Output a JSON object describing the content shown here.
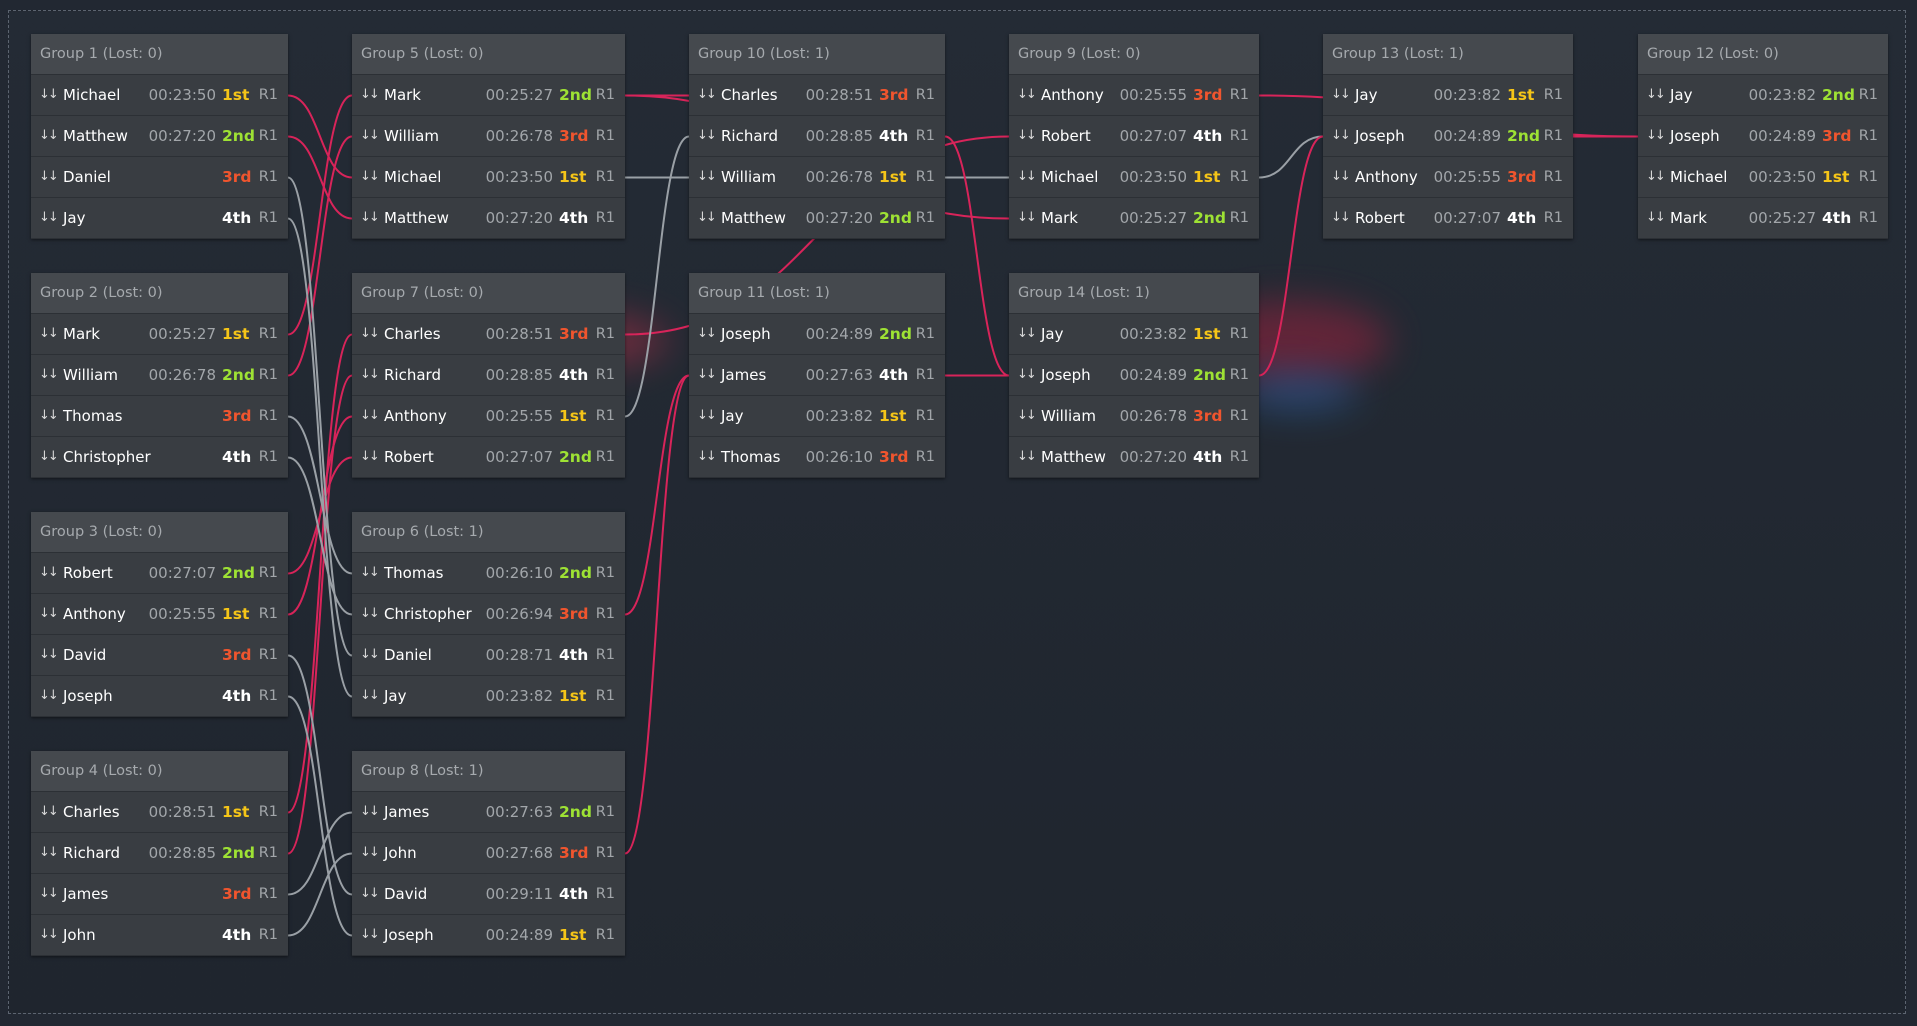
{
  "colors": {
    "place_1st": "#f5c518",
    "place_2nd": "#9ee234",
    "place_3rd": "#f0552e",
    "place_4th": "#ffffff",
    "connector_advance": "#d8245a",
    "connector_lose": "#9aa0a6"
  },
  "icons": {
    "sort": "swap-vertical-arrows-icon"
  },
  "groups": [
    {
      "id": "g1",
      "title": "Group 1 (Lost: 0)",
      "rows": [
        {
          "sort": "↓↓",
          "name": "Michael",
          "time": "00:23:50",
          "place": "1st",
          "round": "R1"
        },
        {
          "sort": "↓↓",
          "name": "Matthew",
          "time": "00:27:20",
          "place": "2nd",
          "round": "R1"
        },
        {
          "sort": "↓↓",
          "name": "Daniel",
          "time": "",
          "place": "3rd",
          "round": "R1"
        },
        {
          "sort": "↓↓",
          "name": "Jay",
          "time": "",
          "place": "4th",
          "round": "R1"
        }
      ]
    },
    {
      "id": "g2",
      "title": "Group 2 (Lost: 0)",
      "rows": [
        {
          "sort": "↓↓",
          "name": "Mark",
          "time": "00:25:27",
          "place": "1st",
          "round": "R1"
        },
        {
          "sort": "↓↓",
          "name": "William",
          "time": "00:26:78",
          "place": "2nd",
          "round": "R1"
        },
        {
          "sort": "↓↓",
          "name": "Thomas",
          "time": "",
          "place": "3rd",
          "round": "R1"
        },
        {
          "sort": "↓↓",
          "name": "Christopher",
          "time": "",
          "place": "4th",
          "round": "R1"
        }
      ]
    },
    {
      "id": "g3",
      "title": "Group 3 (Lost: 0)",
      "rows": [
        {
          "sort": "↓↓",
          "name": "Robert",
          "time": "00:27:07",
          "place": "2nd",
          "round": "R1"
        },
        {
          "sort": "↓↓",
          "name": "Anthony",
          "time": "00:25:55",
          "place": "1st",
          "round": "R1"
        },
        {
          "sort": "↓↓",
          "name": "David",
          "time": "",
          "place": "3rd",
          "round": "R1"
        },
        {
          "sort": "↓↓",
          "name": "Joseph",
          "time": "",
          "place": "4th",
          "round": "R1"
        }
      ]
    },
    {
      "id": "g4",
      "title": "Group 4 (Lost: 0)",
      "rows": [
        {
          "sort": "↓↓",
          "name": "Charles",
          "time": "00:28:51",
          "place": "1st",
          "round": "R1"
        },
        {
          "sort": "↓↓",
          "name": "Richard",
          "time": "00:28:85",
          "place": "2nd",
          "round": "R1"
        },
        {
          "sort": "↓↓",
          "name": "James",
          "time": "",
          "place": "3rd",
          "round": "R1"
        },
        {
          "sort": "↓↓",
          "name": "John",
          "time": "",
          "place": "4th",
          "round": "R1"
        }
      ]
    },
    {
      "id": "g5",
      "title": "Group 5 (Lost: 0)",
      "rows": [
        {
          "sort": "↓↓",
          "name": "Mark",
          "time": "00:25:27",
          "place": "2nd",
          "round": "R1"
        },
        {
          "sort": "↓↓",
          "name": "William",
          "time": "00:26:78",
          "place": "3rd",
          "round": "R1"
        },
        {
          "sort": "↓↓",
          "name": "Michael",
          "time": "00:23:50",
          "place": "1st",
          "round": "R1"
        },
        {
          "sort": "↓↓",
          "name": "Matthew",
          "time": "00:27:20",
          "place": "4th",
          "round": "R1"
        }
      ]
    },
    {
      "id": "g7",
      "title": "Group 7 (Lost: 0)",
      "rows": [
        {
          "sort": "↓↓",
          "name": "Charles",
          "time": "00:28:51",
          "place": "3rd",
          "round": "R1"
        },
        {
          "sort": "↓↓",
          "name": "Richard",
          "time": "00:28:85",
          "place": "4th",
          "round": "R1"
        },
        {
          "sort": "↓↓",
          "name": "Anthony",
          "time": "00:25:55",
          "place": "1st",
          "round": "R1"
        },
        {
          "sort": "↓↓",
          "name": "Robert",
          "time": "00:27:07",
          "place": "2nd",
          "round": "R1"
        }
      ]
    },
    {
      "id": "g6",
      "title": "Group 6 (Lost: 1)",
      "rows": [
        {
          "sort": "↓↓",
          "name": "Thomas",
          "time": "00:26:10",
          "place": "2nd",
          "round": "R1"
        },
        {
          "sort": "↓↓",
          "name": "Christopher",
          "time": "00:26:94",
          "place": "3rd",
          "round": "R1"
        },
        {
          "sort": "↓↓",
          "name": "Daniel",
          "time": "00:28:71",
          "place": "4th",
          "round": "R1"
        },
        {
          "sort": "↓↓",
          "name": "Jay",
          "time": "00:23:82",
          "place": "1st",
          "round": "R1"
        }
      ]
    },
    {
      "id": "g8",
      "title": "Group 8 (Lost: 1)",
      "rows": [
        {
          "sort": "↓↓",
          "name": "James",
          "time": "00:27:63",
          "place": "2nd",
          "round": "R1"
        },
        {
          "sort": "↓↓",
          "name": "John",
          "time": "00:27:68",
          "place": "3rd",
          "round": "R1"
        },
        {
          "sort": "↓↓",
          "name": "David",
          "time": "00:29:11",
          "place": "4th",
          "round": "R1"
        },
        {
          "sort": "↓↓",
          "name": "Joseph",
          "time": "00:24:89",
          "place": "1st",
          "round": "R1"
        }
      ]
    },
    {
      "id": "g10",
      "title": "Group 10 (Lost: 1)",
      "rows": [
        {
          "sort": "↓↓",
          "name": "Charles",
          "time": "00:28:51",
          "place": "3rd",
          "round": "R1"
        },
        {
          "sort": "↓↓",
          "name": "Richard",
          "time": "00:28:85",
          "place": "4th",
          "round": "R1"
        },
        {
          "sort": "↓↓",
          "name": "William",
          "time": "00:26:78",
          "place": "1st",
          "round": "R1"
        },
        {
          "sort": "↓↓",
          "name": "Matthew",
          "time": "00:27:20",
          "place": "2nd",
          "round": "R1"
        }
      ]
    },
    {
      "id": "g11",
      "title": "Group 11 (Lost: 1)",
      "rows": [
        {
          "sort": "↓↓",
          "name": "Joseph",
          "time": "00:24:89",
          "place": "2nd",
          "round": "R1"
        },
        {
          "sort": "↓↓",
          "name": "James",
          "time": "00:27:63",
          "place": "4th",
          "round": "R1"
        },
        {
          "sort": "↓↓",
          "name": "Jay",
          "time": "00:23:82",
          "place": "1st",
          "round": "R1"
        },
        {
          "sort": "↓↓",
          "name": "Thomas",
          "time": "00:26:10",
          "place": "3rd",
          "round": "R1"
        }
      ]
    },
    {
      "id": "g9",
      "title": "Group 9 (Lost: 0)",
      "rows": [
        {
          "sort": "↓↓",
          "name": "Anthony",
          "time": "00:25:55",
          "place": "3rd",
          "round": "R1"
        },
        {
          "sort": "↓↓",
          "name": "Robert",
          "time": "00:27:07",
          "place": "4th",
          "round": "R1"
        },
        {
          "sort": "↓↓",
          "name": "Michael",
          "time": "00:23:50",
          "place": "1st",
          "round": "R1"
        },
        {
          "sort": "↓↓",
          "name": "Mark",
          "time": "00:25:27",
          "place": "2nd",
          "round": "R1"
        }
      ]
    },
    {
      "id": "g14",
      "title": "Group 14 (Lost: 1)",
      "rows": [
        {
          "sort": "↓↓",
          "name": "Jay",
          "time": "00:23:82",
          "place": "1st",
          "round": "R1"
        },
        {
          "sort": "↓↓",
          "name": "Joseph",
          "time": "00:24:89",
          "place": "2nd",
          "round": "R1"
        },
        {
          "sort": "↓↓",
          "name": "William",
          "time": "00:26:78",
          "place": "3rd",
          "round": "R1"
        },
        {
          "sort": "↓↓",
          "name": "Matthew",
          "time": "00:27:20",
          "place": "4th",
          "round": "R1"
        }
      ]
    },
    {
      "id": "g13",
      "title": "Group 13 (Lost: 1)",
      "rows": [
        {
          "sort": "↓↓",
          "name": "Jay",
          "time": "00:23:82",
          "place": "1st",
          "round": "R1"
        },
        {
          "sort": "↓↓",
          "name": "Joseph",
          "time": "00:24:89",
          "place": "2nd",
          "round": "R1"
        },
        {
          "sort": "↓↓",
          "name": "Anthony",
          "time": "00:25:55",
          "place": "3rd",
          "round": "R1"
        },
        {
          "sort": "↓↓",
          "name": "Robert",
          "time": "00:27:07",
          "place": "4th",
          "round": "R1"
        }
      ]
    },
    {
      "id": "g12",
      "title": "Group 12 (Lost: 0)",
      "rows": [
        {
          "sort": "↓↓",
          "name": "Jay",
          "time": "00:23:82",
          "place": "2nd",
          "round": "R1"
        },
        {
          "sort": "↓↓",
          "name": "Joseph",
          "time": "00:24:89",
          "place": "3rd",
          "round": "R1"
        },
        {
          "sort": "↓↓",
          "name": "Michael",
          "time": "00:23:50",
          "place": "1st",
          "round": "R1"
        },
        {
          "sort": "↓↓",
          "name": "Mark",
          "time": "00:25:27",
          "place": "4th",
          "round": "R1"
        }
      ]
    }
  ],
  "connectors": [
    {
      "from": [
        "g1",
        0
      ],
      "to": [
        "g5",
        2
      ],
      "kind": "advance"
    },
    {
      "from": [
        "g1",
        1
      ],
      "to": [
        "g5",
        3
      ],
      "kind": "advance"
    },
    {
      "from": [
        "g2",
        0
      ],
      "to": [
        "g5",
        0
      ],
      "kind": "advance"
    },
    {
      "from": [
        "g2",
        1
      ],
      "to": [
        "g5",
        1
      ],
      "kind": "advance"
    },
    {
      "from": [
        "g3",
        0
      ],
      "to": [
        "g7",
        3
      ],
      "kind": "advance"
    },
    {
      "from": [
        "g3",
        1
      ],
      "to": [
        "g7",
        2
      ],
      "kind": "advance"
    },
    {
      "from": [
        "g4",
        0
      ],
      "to": [
        "g7",
        0
      ],
      "kind": "advance"
    },
    {
      "from": [
        "g4",
        1
      ],
      "to": [
        "g7",
        1
      ],
      "kind": "advance"
    },
    {
      "from": [
        "g1",
        2
      ],
      "to": [
        "g6",
        2
      ],
      "kind": "lose"
    },
    {
      "from": [
        "g1",
        3
      ],
      "to": [
        "g6",
        3
      ],
      "kind": "lose"
    },
    {
      "from": [
        "g2",
        2
      ],
      "to": [
        "g6",
        0
      ],
      "kind": "lose"
    },
    {
      "from": [
        "g2",
        3
      ],
      "to": [
        "g6",
        1
      ],
      "kind": "lose"
    },
    {
      "from": [
        "g3",
        2
      ],
      "to": [
        "g8",
        2
      ],
      "kind": "lose"
    },
    {
      "from": [
        "g3",
        3
      ],
      "to": [
        "g8",
        3
      ],
      "kind": "lose"
    },
    {
      "from": [
        "g4",
        2
      ],
      "to": [
        "g8",
        0
      ],
      "kind": "lose"
    },
    {
      "from": [
        "g4",
        3
      ],
      "to": [
        "g8",
        1
      ],
      "kind": "lose"
    },
    {
      "from": [
        "g5",
        0
      ],
      "to": [
        "g9",
        3
      ],
      "kind": "advance"
    },
    {
      "from": [
        "g5",
        2
      ],
      "to": [
        "g9",
        2
      ],
      "kind": "lose"
    },
    {
      "from": [
        "g7",
        0
      ],
      "to": [
        "g9",
        1
      ],
      "kind": "advance"
    },
    {
      "from": [
        "g7",
        2
      ],
      "to": [
        "g10",
        1
      ],
      "kind": "lose"
    },
    {
      "from": [
        "g6",
        1
      ],
      "to": [
        "g11",
        1
      ],
      "kind": "advance"
    },
    {
      "from": [
        "g8",
        1
      ],
      "to": [
        "g11",
        1
      ],
      "kind": "advance"
    },
    {
      "from": [
        "g10",
        1
      ],
      "to": [
        "g14",
        1
      ],
      "kind": "advance"
    },
    {
      "from": [
        "g11",
        1
      ],
      "to": [
        "g14",
        1
      ],
      "kind": "advance"
    },
    {
      "from": [
        "g9",
        0
      ],
      "to": [
        "g12",
        1
      ],
      "kind": "advance"
    },
    {
      "from": [
        "g9",
        2
      ],
      "to": [
        "g13",
        1
      ],
      "kind": "lose"
    },
    {
      "from": [
        "g14",
        1
      ],
      "to": [
        "g13",
        1
      ],
      "kind": "advance"
    },
    {
      "from": [
        "g13",
        1
      ],
      "to": [
        "g12",
        1
      ],
      "kind": "advance"
    },
    {
      "from": [
        "g5",
        0
      ],
      "to": [
        "g10",
        0
      ],
      "kind": "advance"
    }
  ]
}
